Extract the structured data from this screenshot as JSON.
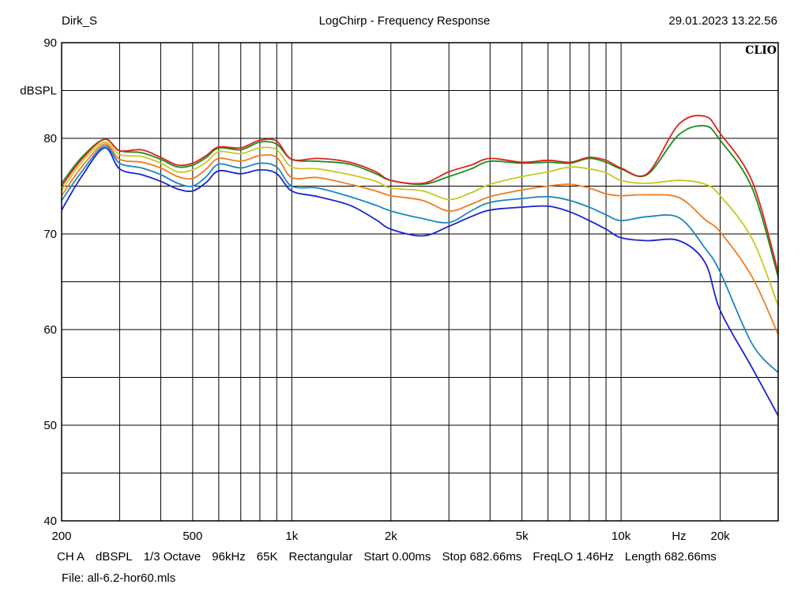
{
  "header": {
    "left": "Dirk_S",
    "center": "LogChirp - Frequency Response",
    "right": "29.01.2023 13.22.56"
  },
  "brand": "CLIO",
  "footer": {
    "items": [
      "CH A",
      "dBSPL",
      "1/3 Octave",
      "96kHz",
      "65K",
      "Rectangular",
      "Start 0.00ms",
      "Stop 682.66ms",
      "FreqLO 1.46Hz",
      "Length 682.66ms"
    ],
    "file": "File: all-6.2-hor60.mls"
  },
  "chart_data": {
    "type": "line",
    "title": "LogChirp - Frequency Response",
    "ylabel": "dBSPL",
    "xlabel": "Hz",
    "x_scale": "log",
    "xlim": [
      200,
      30000
    ],
    "ylim": [
      40,
      90
    ],
    "grid": true,
    "x_tick_labels": [
      {
        "v": 200,
        "t": "200"
      },
      {
        "v": 500,
        "t": "500"
      },
      {
        "v": 1000,
        "t": "1k"
      },
      {
        "v": 2000,
        "t": "2k"
      },
      {
        "v": 5000,
        "t": "5k"
      },
      {
        "v": 10000,
        "t": "10k"
      },
      {
        "v": 15000,
        "t": "Hz"
      },
      {
        "v": 20000,
        "t": "20k"
      }
    ],
    "y_tick_labels": [
      {
        "v": 90,
        "t": "90"
      },
      {
        "v": 80,
        "t": "80"
      },
      {
        "v": 70,
        "t": "70"
      },
      {
        "v": 60,
        "t": "60"
      },
      {
        "v": 50,
        "t": "50"
      },
      {
        "v": 40,
        "t": "40"
      }
    ],
    "x": [
      200,
      230,
      270,
      300,
      350,
      400,
      450,
      500,
      550,
      600,
      700,
      800,
      900,
      1000,
      1200,
      1500,
      1800,
      2000,
      2500,
      3000,
      3500,
      4000,
      5000,
      6000,
      7000,
      8000,
      9000,
      10000,
      12000,
      15000,
      18000,
      20000,
      25000,
      30000
    ],
    "series": [
      {
        "color": "#e02020",
        "values": [
          75.0,
          77.8,
          79.9,
          78.7,
          78.8,
          78.0,
          77.2,
          77.4,
          78.2,
          79.1,
          79.0,
          79.8,
          79.7,
          77.8,
          77.9,
          77.5,
          76.5,
          75.6,
          75.3,
          76.5,
          77.2,
          77.9,
          77.5,
          77.7,
          77.5,
          78.0,
          77.7,
          76.9,
          76.3,
          81.5,
          82.3,
          80.5,
          75.5,
          66.0
        ]
      },
      {
        "color": "#1a8a1a",
        "values": [
          75.3,
          78.0,
          79.9,
          78.7,
          78.5,
          77.8,
          77.0,
          77.2,
          78.0,
          79.0,
          78.8,
          79.6,
          79.4,
          77.8,
          77.6,
          77.3,
          76.3,
          75.6,
          75.2,
          76.0,
          76.8,
          77.6,
          77.4,
          77.5,
          77.4,
          77.9,
          77.5,
          76.8,
          76.2,
          80.4,
          81.3,
          79.8,
          74.8,
          65.5
        ]
      },
      {
        "color": "#c8c820",
        "values": [
          74.5,
          77.5,
          79.6,
          78.3,
          78.1,
          77.4,
          76.5,
          76.7,
          77.5,
          78.6,
          78.4,
          79.0,
          78.8,
          77.0,
          76.8,
          76.2,
          75.5,
          74.8,
          74.5,
          73.6,
          74.3,
          75.2,
          76.0,
          76.5,
          77.0,
          76.8,
          76.4,
          75.6,
          75.3,
          75.6,
          75.2,
          74.0,
          69.5,
          62.5
        ]
      },
      {
        "color": "#f07c20",
        "values": [
          74.0,
          77.0,
          79.4,
          77.8,
          77.5,
          76.9,
          76.0,
          75.8,
          76.8,
          77.9,
          77.6,
          78.2,
          78.0,
          75.9,
          75.9,
          75.2,
          74.5,
          74.0,
          73.5,
          72.4,
          73.1,
          73.9,
          74.6,
          75.0,
          75.2,
          74.8,
          74.2,
          74.0,
          74.1,
          73.8,
          71.5,
          70.2,
          65.5,
          59.5
        ]
      },
      {
        "color": "#1a86c0",
        "values": [
          73.5,
          76.5,
          79.2,
          77.4,
          76.9,
          76.2,
          75.3,
          75.0,
          76.0,
          77.3,
          76.9,
          77.4,
          77.0,
          75.0,
          74.8,
          73.9,
          73.0,
          72.4,
          71.6,
          71.2,
          72.4,
          73.3,
          73.7,
          73.9,
          73.5,
          72.8,
          72.0,
          71.4,
          71.8,
          71.7,
          68.5,
          66.0,
          58.5,
          55.5
        ]
      },
      {
        "color": "#1b24d0",
        "values": [
          72.5,
          76.0,
          79.0,
          76.8,
          76.2,
          75.5,
          74.7,
          74.5,
          75.4,
          76.6,
          76.3,
          76.7,
          76.3,
          74.5,
          73.9,
          73.0,
          71.5,
          70.5,
          69.8,
          70.8,
          71.8,
          72.5,
          72.8,
          72.9,
          72.3,
          71.4,
          70.5,
          69.6,
          69.3,
          69.3,
          67.0,
          62.0,
          56.0,
          51.0
        ]
      }
    ]
  }
}
